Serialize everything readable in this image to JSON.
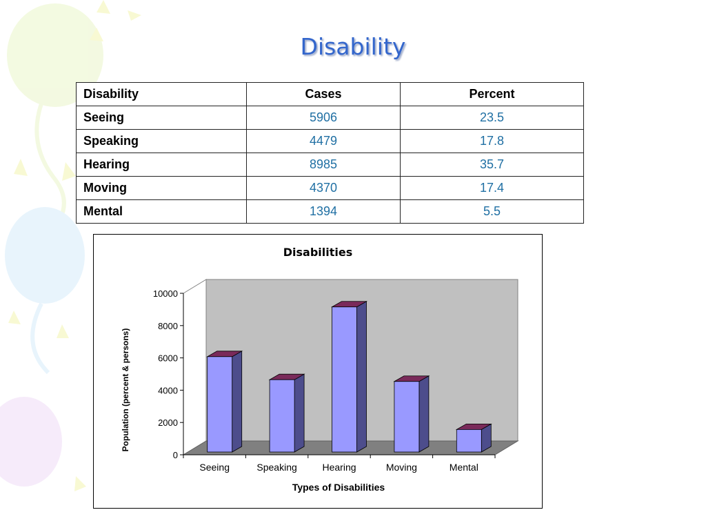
{
  "slide": {
    "title": "Disability"
  },
  "table": {
    "headers": [
      "Disability",
      "Cases",
      "Percent"
    ],
    "rows": [
      {
        "name": "Seeing",
        "cases": "5906",
        "percent": "23.5"
      },
      {
        "name": "Speaking",
        "cases": "4479",
        "percent": "17.8"
      },
      {
        "name": "Hearing",
        "cases": "8985",
        "percent": "35.7"
      },
      {
        "name": "Moving",
        "cases": "4370",
        "percent": "17.4"
      },
      {
        "name": "Mental",
        "cases": "1394",
        "percent": "5.5"
      }
    ]
  },
  "chart_data": {
    "type": "bar",
    "title": "Disabilities",
    "xlabel": "Types of Disabilities",
    "ylabel": "Population (percent & persons)",
    "categories": [
      "Seeing",
      "Speaking",
      "Hearing",
      "Moving",
      "Mental"
    ],
    "values": [
      5906,
      4479,
      8985,
      4370,
      1394
    ],
    "ylim": [
      0,
      10000
    ],
    "yticks": [
      0,
      2000,
      4000,
      6000,
      8000,
      10000
    ],
    "legend": "none",
    "grid": false,
    "colors": {
      "bar_front": "#9999ff",
      "bar_side": "#4d4d8c",
      "bar_top": "#7a2a5a",
      "back_wall": "#c0c0c0",
      "floor": "#808080"
    }
  }
}
